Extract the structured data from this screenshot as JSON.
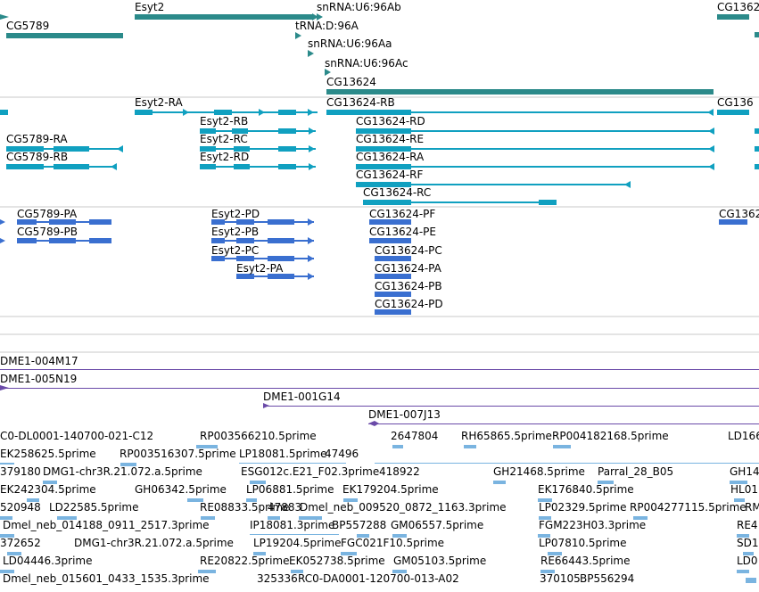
{
  "colors": {
    "gene": "#2b8a8a",
    "transcript": "#10a0c0",
    "protein": "#3a6fd0",
    "clone": "#6a4aa8",
    "est": "#7ab4e0",
    "separator": "#c8c8c8"
  },
  "tracks": {
    "genes": [
      {
        "label": "Esyt2"
      },
      {
        "label": "snRNA:U6:96Ab"
      },
      {
        "label": "CG1362"
      },
      {
        "label": "CG5789"
      },
      {
        "label": "tRNA:D:96A"
      },
      {
        "label": "snRNA:U6:96Aa"
      },
      {
        "label": "snRNA:U6:96Ac"
      },
      {
        "label": "CG13624"
      }
    ],
    "transcripts": [
      {
        "label": "Esyt2-RA"
      },
      {
        "label": "CG13624-RB"
      },
      {
        "label": "CG136"
      },
      {
        "label": "Esyt2-RB"
      },
      {
        "label": "CG13624-RD"
      },
      {
        "label": "CG5789-RA"
      },
      {
        "label": "Esyt2-RC"
      },
      {
        "label": "CG13624-RE"
      },
      {
        "label": "CG5789-RB"
      },
      {
        "label": "Esyt2-RD"
      },
      {
        "label": "CG13624-RA"
      },
      {
        "label": "CG13624-RF"
      },
      {
        "label": "CG13624-RC"
      }
    ],
    "proteins": [
      {
        "label": "CG5789-PA"
      },
      {
        "label": "Esyt2-PD"
      },
      {
        "label": "CG13624-PF"
      },
      {
        "label": "CG1362"
      },
      {
        "label": "CG5789-PB"
      },
      {
        "label": "Esyt2-PB"
      },
      {
        "label": "CG13624-PE"
      },
      {
        "label": "Esyt2-PC"
      },
      {
        "label": "CG13624-PC"
      },
      {
        "label": "Esyt2-PA"
      },
      {
        "label": "CG13624-PA"
      },
      {
        "label": "CG13624-PB"
      },
      {
        "label": "CG13624-PD"
      }
    ],
    "clones": [
      {
        "label": "DME1-004M17"
      },
      {
        "label": "DME1-005N19"
      },
      {
        "label": "DME1-001G14"
      },
      {
        "label": "DME1-007J13"
      }
    ],
    "ests": [
      {
        "label": "C0-DL0001-140700-021-C12"
      },
      {
        "label": "RP003566210.5prime"
      },
      {
        "label": "2647804"
      },
      {
        "label": "RH65865.5prime"
      },
      {
        "label": "RP004182168.5prime"
      },
      {
        "label": "LD166"
      },
      {
        "label": "EK258625.5prime"
      },
      {
        "label": "RP003516307.5prime"
      },
      {
        "label": "LP18081.5prime"
      },
      {
        "label": "47496"
      },
      {
        "label": "379180"
      },
      {
        "label": "DMG1-chr3R.21.072.a.5prime"
      },
      {
        "label": "ESG012c.E21_F02.3prime"
      },
      {
        "label": "418922"
      },
      {
        "label": "GH21468.5prime"
      },
      {
        "label": "Parral_28_B05"
      },
      {
        "label": "GH14"
      },
      {
        "label": "EK242304.5prime"
      },
      {
        "label": "GH06342.5prime"
      },
      {
        "label": "LP06881.5prime"
      },
      {
        "label": "EK179204.5prime"
      },
      {
        "label": "EK176840.5prime"
      },
      {
        "label": "HL01"
      },
      {
        "label": "520948"
      },
      {
        "label": "LD22585.5prime"
      },
      {
        "label": "RE08833.5prime"
      },
      {
        "label": "47883"
      },
      {
        "label": "Dmel_neb_009520_0872_1163.3prime"
      },
      {
        "label": "LP02329.5prime"
      },
      {
        "label": "RP004277115.5prime"
      },
      {
        "label": "RM"
      },
      {
        "label": "Dmel_neb_014188_0911_2517.3prime"
      },
      {
        "label": "IP18081.3prime"
      },
      {
        "label": "BP557288"
      },
      {
        "label": "GM06557.5prime"
      },
      {
        "label": "FGM223H03.3prime"
      },
      {
        "label": "RE4"
      },
      {
        "label": "372652"
      },
      {
        "label": "DMG1-chr3R.21.072.a.5prime"
      },
      {
        "label": "LP19204.5prime"
      },
      {
        "label": "FGC021F10.5prime"
      },
      {
        "label": "LP07810.5prime"
      },
      {
        "label": "SD1"
      },
      {
        "label": "LD04446.3prime"
      },
      {
        "label": "RE20822.5prime"
      },
      {
        "label": "EK052738.5prime"
      },
      {
        "label": "GM05103.5prime"
      },
      {
        "label": "RE66443.5prime"
      },
      {
        "label": "LD0"
      },
      {
        "label": "Dmel_neb_015601_0433_1535.3prime"
      },
      {
        "label": "325336"
      },
      {
        "label": "RC0-DA0001-120700-013-A02"
      },
      {
        "label": "370105"
      },
      {
        "label": "BP556294"
      }
    ]
  }
}
